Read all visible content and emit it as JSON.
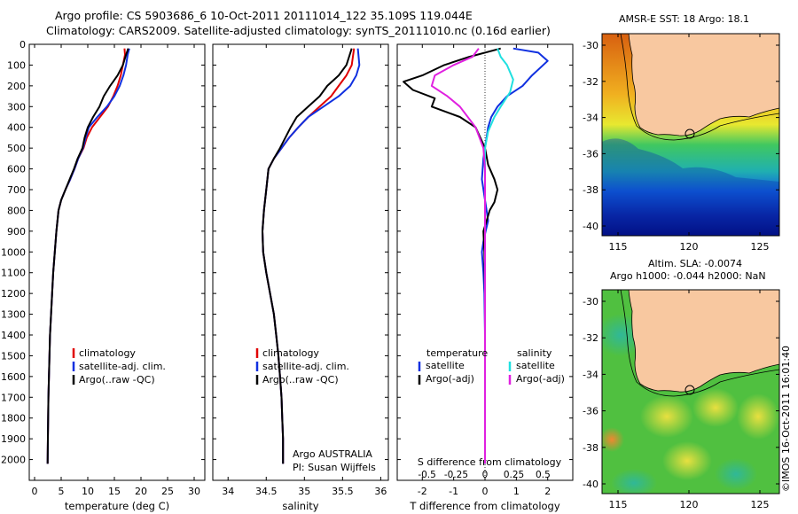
{
  "titles": {
    "line1": "Argo profile: CS 5903686_6 10-Oct-2011 20111014_122 35.109S 119.044E",
    "line2": "Climatology: CARS2009. Satellite-adjusted climatology: synTS_20111010.nc (0.16d earlier)"
  },
  "colors": {
    "climatology": "#e00000",
    "satellite": "#1030e0",
    "argo": "#000000",
    "satellite_s": "#20e0e0",
    "argo_s": "#e020e0",
    "land": "#f8c8a0"
  },
  "chart_data": [
    {
      "type": "line",
      "id": "temperature",
      "xlabel": "temperature (deg C)",
      "ylabel": "",
      "xlim": [
        -1,
        32
      ],
      "ylim": [
        2100,
        0
      ],
      "xticks": [
        "0",
        "5",
        "10",
        "15",
        "20",
        "25",
        "30"
      ],
      "xtick_values": [
        0,
        5,
        10,
        15,
        20,
        25,
        30
      ],
      "yticks": [
        "0",
        "100",
        "200",
        "300",
        "400",
        "500",
        "600",
        "700",
        "800",
        "900",
        "1000",
        "1100",
        "1200",
        "1300",
        "1400",
        "1500",
        "1600",
        "1700",
        "1800",
        "1900",
        "2000"
      ],
      "ytick_values": [
        0,
        100,
        200,
        300,
        400,
        500,
        600,
        700,
        800,
        900,
        1000,
        1100,
        1200,
        1300,
        1400,
        1500,
        1600,
        1700,
        1800,
        1900,
        2000
      ],
      "legend": [
        "climatology",
        "satellite-adj. clim.",
        "Argo(..raw -QC)"
      ],
      "series": [
        {
          "name": "climatology",
          "color_key": "climatology",
          "x": [
            16.9,
            17.0,
            16.6,
            16.2,
            15.6,
            14.8,
            13.8,
            12.3,
            10.8,
            9.8,
            9.2,
            8.2,
            7.5,
            6.7,
            5.8,
            5.0,
            4.5,
            4.1,
            3.8,
            3.5,
            3.3,
            3.1,
            2.9,
            2.8,
            2.7,
            2.6,
            2.55,
            2.5,
            2.45
          ],
          "y": [
            20,
            50,
            100,
            150,
            200,
            250,
            300,
            350,
            400,
            450,
            500,
            550,
            600,
            650,
            700,
            750,
            800,
            900,
            1000,
            1100,
            1200,
            1300,
            1400,
            1500,
            1600,
            1700,
            1800,
            1900,
            2020
          ]
        },
        {
          "name": "satellite-adj. clim.",
          "color_key": "satellite",
          "x": [
            17.8,
            17.5,
            17.2,
            16.7,
            16.0,
            15.0,
            13.6,
            11.8,
            10.2,
            9.6,
            9.1,
            8.2,
            7.5,
            6.7,
            5.8,
            5.0,
            4.5,
            4.1,
            3.8,
            3.5,
            3.3,
            3.1,
            2.9,
            2.8,
            2.7,
            2.6,
            2.55,
            2.5,
            2.45
          ],
          "y": [
            20,
            50,
            100,
            150,
            200,
            250,
            300,
            350,
            400,
            450,
            500,
            550,
            600,
            650,
            700,
            750,
            800,
            900,
            1000,
            1100,
            1200,
            1300,
            1400,
            1500,
            1600,
            1700,
            1800,
            1900,
            2020
          ]
        },
        {
          "name": "Argo(..raw -QC)",
          "color_key": "argo",
          "x": [
            17.6,
            17.2,
            16.6,
            15.6,
            14.2,
            13.0,
            12.2,
            11.0,
            10.0,
            9.4,
            9.0,
            8.1,
            7.4,
            6.6,
            5.8,
            5.0,
            4.5,
            4.1,
            3.8,
            3.5,
            3.3,
            3.1,
            2.9,
            2.8,
            2.7,
            2.6,
            2.55,
            2.5,
            2.45
          ],
          "y": [
            20,
            50,
            100,
            150,
            200,
            250,
            300,
            350,
            400,
            450,
            500,
            550,
            600,
            650,
            700,
            750,
            800,
            900,
            1000,
            1100,
            1200,
            1300,
            1400,
            1500,
            1600,
            1700,
            1800,
            1900,
            2020
          ]
        }
      ]
    },
    {
      "type": "line",
      "id": "salinity",
      "xlabel": "salinity",
      "xlim": [
        33.8,
        36.1
      ],
      "ylim": [
        2100,
        0
      ],
      "xticks": [
        "34",
        "34.5",
        "35",
        "35.5",
        "36"
      ],
      "xtick_values": [
        34,
        34.5,
        35,
        35.5,
        36
      ],
      "legend": [
        "climatology",
        "satellite-adj. clim.",
        "Argo(..raw -QC)"
      ],
      "annotation": [
        "Argo AUSTRALIA",
        "PI: Susan Wijffels"
      ],
      "series": [
        {
          "name": "climatology",
          "color_key": "climatology",
          "x": [
            35.65,
            35.62,
            35.55,
            35.45,
            35.35,
            35.2,
            35.05,
            34.92,
            34.8,
            34.7,
            34.6,
            34.53,
            34.5,
            34.47,
            34.45,
            34.46,
            34.5,
            34.55,
            34.6,
            34.63,
            34.66,
            34.68,
            34.7,
            34.71,
            34.72,
            34.72
          ],
          "y": [
            20,
            100,
            150,
            200,
            250,
            300,
            350,
            400,
            450,
            500,
            550,
            600,
            700,
            800,
            900,
            1000,
            1100,
            1200,
            1300,
            1400,
            1500,
            1600,
            1700,
            1800,
            1900,
            2020
          ]
        },
        {
          "name": "satellite-adj. clim.",
          "color_key": "satellite",
          "x": [
            35.7,
            35.72,
            35.68,
            35.6,
            35.45,
            35.25,
            35.05,
            34.92,
            34.8,
            34.7,
            34.6,
            34.53,
            34.5,
            34.47,
            34.45,
            34.46,
            34.5,
            34.55,
            34.6,
            34.63,
            34.66,
            34.68,
            34.7,
            34.71,
            34.72,
            34.72
          ],
          "y": [
            20,
            100,
            150,
            200,
            250,
            300,
            350,
            400,
            450,
            500,
            550,
            600,
            700,
            800,
            900,
            1000,
            1100,
            1200,
            1300,
            1400,
            1500,
            1600,
            1700,
            1800,
            1900,
            2020
          ]
        },
        {
          "name": "Argo(..raw -QC)",
          "color_key": "argo",
          "x": [
            35.62,
            35.55,
            35.45,
            35.3,
            35.2,
            35.05,
            34.9,
            34.82,
            34.75,
            34.68,
            34.6,
            34.53,
            34.5,
            34.47,
            34.45,
            34.46,
            34.5,
            34.55,
            34.6,
            34.63,
            34.66,
            34.68,
            34.7,
            34.71,
            34.72,
            34.72
          ],
          "y": [
            20,
            100,
            150,
            200,
            250,
            300,
            350,
            400,
            450,
            500,
            550,
            600,
            700,
            800,
            900,
            1000,
            1100,
            1200,
            1300,
            1400,
            1500,
            1600,
            1700,
            1800,
            1900,
            2020
          ]
        }
      ]
    },
    {
      "type": "line",
      "id": "difference",
      "xlabel": "T difference from climatology",
      "xlabel_top": "S difference from climatology",
      "xlim": [
        -2.8,
        2.8
      ],
      "ylim": [
        2100,
        0
      ],
      "xticks": [
        "-2",
        "-1",
        "0",
        "1",
        "2"
      ],
      "xtick_values": [
        -2,
        -1,
        0,
        1,
        2
      ],
      "sticks": [
        "-0.5",
        "-0.25",
        "0",
        "0.25",
        "0.5"
      ],
      "stick_values_in_T_units": [
        -1.85,
        -0.92,
        0,
        0.92,
        1.85
      ],
      "legend_headers": [
        "temperature",
        "salinity"
      ],
      "legend": [
        "satellite",
        "Argo(-adj)",
        "satellite",
        "Argo(-adj)"
      ],
      "series": [
        {
          "name": "temperature satellite",
          "color_key": "satellite",
          "x": [
            0.9,
            1.7,
            2.0,
            1.5,
            1.2,
            0.7,
            0.4,
            0.2,
            0.1,
            0.0,
            -0.05,
            -0.1,
            0.0,
            0.05,
            0.1,
            0.02,
            -0.05,
            -0.1,
            -0.05,
            -0.02,
            0,
            0,
            0,
            0,
            0
          ],
          "y": [
            20,
            40,
            80,
            150,
            200,
            250,
            300,
            350,
            400,
            500,
            550,
            650,
            750,
            800,
            850,
            900,
            950,
            1000,
            1100,
            1200,
            1400,
            1600,
            1800,
            1900,
            2020
          ]
        },
        {
          "name": "temperature Argo(-adj)",
          "color_key": "argo",
          "x": [
            0.5,
            -0.5,
            -1.3,
            -2.0,
            -2.6,
            -2.3,
            -1.6,
            -1.7,
            -0.8,
            -0.3,
            0.0,
            0.1,
            0.3,
            0.4,
            0.3,
            0.15,
            0.05,
            -0.05,
            -0.02,
            0,
            0,
            0,
            0,
            0
          ],
          "y": [
            20,
            60,
            100,
            150,
            180,
            220,
            260,
            300,
            350,
            400,
            500,
            580,
            650,
            700,
            760,
            800,
            850,
            900,
            1000,
            1200,
            1400,
            1600,
            1800,
            2020
          ]
        },
        {
          "name": "salinity satellite",
          "color_key": "satellite_s",
          "x": [
            0.4,
            0.5,
            0.7,
            0.9,
            0.8,
            0.5,
            0.3,
            0.1,
            0.0,
            0.0,
            0.0,
            0.0,
            0.0,
            0.0,
            0.0,
            0.0
          ],
          "y": [
            20,
            60,
            100,
            170,
            230,
            300,
            350,
            420,
            500,
            600,
            800,
            1000,
            1300,
            1600,
            1900,
            2020
          ]
        },
        {
          "name": "salinity Argo(-adj)",
          "color_key": "argo_s",
          "x": [
            -0.2,
            -0.4,
            -1.0,
            -1.6,
            -1.7,
            -1.2,
            -0.8,
            -0.3,
            -0.05,
            0.0,
            0.0,
            0.0,
            0.0,
            0.0,
            0.0
          ],
          "y": [
            20,
            60,
            100,
            150,
            200,
            250,
            300,
            400,
            500,
            600,
            800,
            1000,
            1300,
            1600,
            2020
          ]
        }
      ]
    }
  ],
  "maps": {
    "sst": {
      "title": "AMSR-E SST: 18 Argo: 18.1",
      "yticks": [
        "-30",
        "-32",
        "-34",
        "-36",
        "-38",
        "-40"
      ],
      "xticks": [
        "115",
        "120",
        "125"
      ]
    },
    "sla": {
      "title_line1": "Altim. SLA: -0.0074",
      "title_line2": "Argo h1000: -0.044 h2000: NaN",
      "yticks": [
        "-30",
        "-32",
        "-34",
        "-36",
        "-38",
        "-40"
      ],
      "xticks": [
        "115",
        "120",
        "125"
      ]
    }
  },
  "credit": "©IMOS 16-Oct-2011 16:01:40"
}
